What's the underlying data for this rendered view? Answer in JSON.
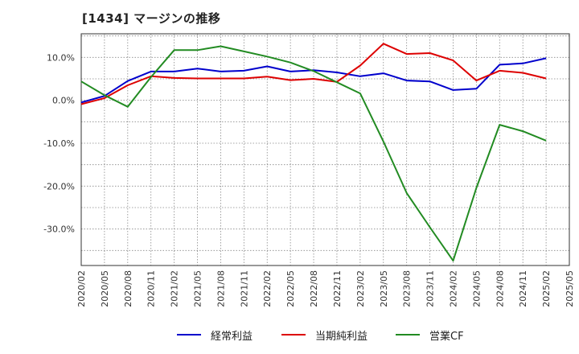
{
  "title": "[1434]  マージンの推移",
  "chart_data": {
    "type": "line",
    "x": [
      "2020/02",
      "2020/05",
      "2020/08",
      "2020/11",
      "2021/02",
      "2021/05",
      "2021/08",
      "2021/11",
      "2022/02",
      "2022/05",
      "2022/08",
      "2022/11",
      "2023/02",
      "2023/05",
      "2023/08",
      "2023/11",
      "2024/02",
      "2024/05",
      "2024/08",
      "2024/11",
      "2025/02",
      "2025/05"
    ],
    "ylim": [
      -38.5,
      15.5
    ],
    "yticks": [
      10,
      0,
      -10,
      -20,
      -30
    ],
    "ytick_labels": [
      "10.0%",
      "0.0%",
      "-10.0%",
      "-20.0%",
      "-30.0%"
    ],
    "grid": true,
    "legend_position": "bottom",
    "series": [
      {
        "name": "経常利益",
        "color": "#0000cc",
        "values": [
          -0.5,
          1.0,
          4.5,
          6.7,
          6.7,
          7.4,
          6.7,
          6.9,
          7.9,
          6.7,
          7.0,
          6.5,
          5.6,
          6.3,
          4.6,
          4.4,
          2.4,
          2.7,
          8.3,
          8.6,
          9.8,
          null
        ]
      },
      {
        "name": "当期純利益",
        "color": "#dd0000",
        "values": [
          -0.9,
          0.5,
          3.5,
          5.6,
          5.2,
          5.1,
          5.1,
          5.1,
          5.5,
          4.7,
          5.0,
          4.3,
          8.1,
          13.2,
          10.8,
          11.0,
          9.3,
          4.6,
          6.9,
          6.4,
          5.1,
          null
        ]
      },
      {
        "name": "営業CF",
        "color": "#228b22",
        "values": [
          4.4,
          1.2,
          -1.5,
          5.4,
          11.7,
          11.7,
          12.6,
          11.4,
          10.2,
          8.8,
          6.8,
          4.2,
          1.6,
          -9.6,
          -21.6,
          -29.6,
          -37.4,
          -20.4,
          -5.7,
          -7.2,
          -9.4,
          null
        ]
      }
    ]
  }
}
